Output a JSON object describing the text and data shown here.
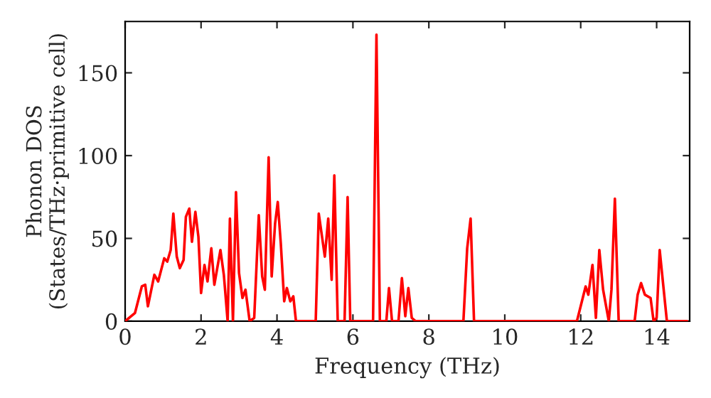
{
  "chart_data": {
    "type": "line",
    "xlabel": "Frequency (THz)",
    "ylabel": "Phonon DOS\n(States/THz·primitive cell)",
    "xlim": [
      0,
      14.87
    ],
    "ylim": [
      0,
      181
    ],
    "xticks": [
      0,
      2,
      4,
      6,
      8,
      10,
      12,
      14
    ],
    "yticks": [
      0,
      50,
      100,
      150
    ],
    "grid": false,
    "legend": false,
    "marker": "none",
    "line_style": "solid",
    "series": [
      {
        "color": "#ff0000",
        "x": [
          0,
          0.26,
          0.44,
          0.53,
          0.6,
          0.77,
          0.87,
          1.03,
          1.11,
          1.2,
          1.27,
          1.36,
          1.44,
          1.54,
          1.6,
          1.69,
          1.76,
          1.85,
          1.93,
          2.0,
          2.09,
          2.17,
          2.27,
          2.35,
          2.51,
          2.6,
          2.7,
          2.76,
          2.84,
          2.92,
          3.0,
          3.09,
          3.17,
          3.28,
          3.4,
          3.52,
          3.61,
          3.68,
          3.78,
          3.86,
          3.95,
          4.02,
          4.1,
          4.19,
          4.26,
          4.35,
          4.43,
          4.5,
          5.02,
          5.1,
          5.26,
          5.35,
          5.44,
          5.51,
          5.6,
          5.78,
          5.86,
          5.93,
          6.53,
          6.62,
          6.71,
          6.88,
          6.95,
          7.03,
          7.2,
          7.29,
          7.38,
          7.46,
          7.55,
          7.65,
          8.91,
          9.01,
          9.1,
          9.19,
          11.9,
          12.13,
          12.2,
          12.31,
          12.4,
          12.49,
          12.59,
          12.74,
          12.81,
          12.9,
          13.0,
          13.42,
          13.5,
          13.59,
          13.69,
          13.84,
          13.92,
          14.0,
          14.08,
          14.27,
          14.8
        ],
        "values": [
          0,
          5,
          21,
          22,
          9,
          28,
          24,
          38,
          36,
          43,
          65,
          39,
          32,
          37,
          63,
          68,
          48,
          66,
          51,
          17,
          34,
          24,
          44,
          22,
          43,
          28,
          0,
          62,
          0,
          78,
          29,
          14,
          19,
          0,
          2,
          64,
          27,
          19,
          99,
          27,
          59,
          72,
          47,
          12,
          20,
          12,
          15,
          0,
          0,
          65,
          39,
          62,
          25,
          88,
          0,
          0,
          75,
          0,
          0,
          173,
          0,
          0,
          20,
          0,
          0,
          26,
          3,
          20,
          2,
          0,
          0,
          44,
          62,
          0,
          0,
          21,
          16,
          34,
          2,
          43,
          19,
          0,
          19,
          74,
          0,
          0,
          16,
          23,
          16,
          14,
          0,
          2,
          43,
          0,
          0
        ]
      }
    ]
  }
}
